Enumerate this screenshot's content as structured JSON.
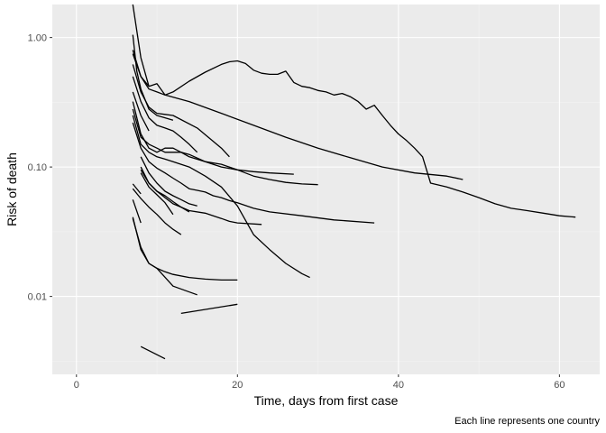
{
  "chart_data": {
    "type": "line",
    "title": "",
    "xlabel": "Time, days from first case",
    "ylabel": "Risk of death",
    "caption": "Each line represents one country",
    "y_scale": "log10",
    "xlim": [
      -3,
      65
    ],
    "ylim": [
      0.0025,
      1.8
    ],
    "x_ticks": [
      0,
      20,
      40,
      60
    ],
    "x_tick_labels": [
      "0",
      "20",
      "40",
      "60"
    ],
    "y_ticks": [
      0.01,
      0.1,
      1
    ],
    "y_tick_labels": [
      "0.01",
      "0.10",
      "1.00"
    ],
    "grid": true,
    "legend": "none",
    "colors": {
      "panel": "#ebebeb",
      "grid_major": "#ffffff",
      "grid_minor": "#f4f4f4",
      "line": "#000000"
    },
    "series": [
      {
        "x": [
          7,
          8,
          9,
          10,
          11,
          12,
          14,
          16,
          18,
          19,
          20,
          21,
          22,
          23,
          24,
          25,
          26,
          27,
          28,
          29,
          30,
          31,
          32,
          33,
          34,
          35,
          36,
          37,
          38,
          39,
          40,
          41,
          42,
          43,
          44,
          46,
          48,
          50,
          52,
          54,
          56,
          58,
          60,
          62
        ],
        "y": [
          0.75,
          0.5,
          0.42,
          0.44,
          0.36,
          0.38,
          0.46,
          0.54,
          0.62,
          0.65,
          0.66,
          0.63,
          0.56,
          0.53,
          0.52,
          0.52,
          0.55,
          0.45,
          0.42,
          0.41,
          0.39,
          0.38,
          0.36,
          0.37,
          0.35,
          0.32,
          0.28,
          0.3,
          0.25,
          0.21,
          0.18,
          0.16,
          0.14,
          0.12,
          0.075,
          0.07,
          0.064,
          0.058,
          0.052,
          0.048,
          0.046,
          0.044,
          0.042,
          0.041
        ]
      },
      {
        "x": [
          7,
          8,
          9,
          10,
          11,
          14,
          18,
          22,
          26,
          30,
          34,
          38,
          42,
          46,
          48
        ],
        "y": [
          0.8,
          0.5,
          0.4,
          0.38,
          0.36,
          0.32,
          0.26,
          0.21,
          0.17,
          0.14,
          0.118,
          0.1,
          0.09,
          0.085,
          0.08
        ]
      },
      {
        "x": [
          7,
          8,
          9
        ],
        "y": [
          1.8,
          0.7,
          0.42
        ]
      },
      {
        "x": [
          7,
          7.5,
          8,
          9,
          10,
          11,
          12
        ],
        "y": [
          1.05,
          0.55,
          0.4,
          0.28,
          0.25,
          0.24,
          0.23
        ]
      },
      {
        "x": [
          7,
          8,
          9,
          10,
          11,
          12,
          15,
          18,
          19
        ],
        "y": [
          0.62,
          0.38,
          0.29,
          0.26,
          0.255,
          0.25,
          0.2,
          0.14,
          0.12
        ]
      },
      {
        "x": [
          7,
          8,
          9,
          10,
          11,
          12,
          13,
          14,
          15
        ],
        "y": [
          0.5,
          0.32,
          0.24,
          0.21,
          0.2,
          0.19,
          0.17,
          0.15,
          0.13
        ]
      },
      {
        "x": [
          7,
          8,
          9
        ],
        "y": [
          0.38,
          0.25,
          0.19
        ]
      },
      {
        "x": [
          7,
          8,
          9,
          10,
          11,
          12,
          13,
          14,
          16,
          18,
          20,
          22,
          24,
          26,
          28,
          30
        ],
        "y": [
          0.32,
          0.18,
          0.14,
          0.13,
          0.14,
          0.14,
          0.13,
          0.12,
          0.11,
          0.105,
          0.095,
          0.085,
          0.08,
          0.076,
          0.074,
          0.073
        ]
      },
      {
        "x": [
          7,
          8,
          9,
          10,
          11,
          12,
          13,
          14,
          16,
          18,
          20,
          22,
          24,
          27
        ],
        "y": [
          0.28,
          0.17,
          0.15,
          0.14,
          0.13,
          0.13,
          0.13,
          0.125,
          0.11,
          0.1,
          0.095,
          0.092,
          0.09,
          0.088
        ]
      },
      {
        "x": [
          7,
          8,
          9,
          10,
          11,
          12,
          14,
          16,
          18,
          20,
          22,
          24,
          26,
          28,
          29
        ],
        "y": [
          0.25,
          0.15,
          0.13,
          0.12,
          0.115,
          0.11,
          0.1,
          0.085,
          0.07,
          0.05,
          0.03,
          0.023,
          0.018,
          0.015,
          0.014
        ]
      },
      {
        "x": [
          7,
          8,
          9,
          10,
          11,
          12,
          13,
          14,
          15,
          16,
          17,
          18,
          19,
          20,
          22,
          24,
          28,
          32,
          37
        ],
        "y": [
          0.22,
          0.14,
          0.11,
          0.098,
          0.09,
          0.082,
          0.075,
          0.068,
          0.066,
          0.064,
          0.06,
          0.058,
          0.055,
          0.053,
          0.048,
          0.045,
          0.042,
          0.039,
          0.037
        ]
      },
      {
        "x": [
          8,
          9,
          10,
          11,
          12,
          13,
          14,
          16,
          17,
          18,
          19,
          20,
          23
        ],
        "y": [
          0.1,
          0.075,
          0.065,
          0.058,
          0.052,
          0.049,
          0.046,
          0.044,
          0.042,
          0.04,
          0.038,
          0.037,
          0.036
        ]
      },
      {
        "x": [
          8,
          9,
          10,
          11,
          12,
          13,
          14,
          15
        ],
        "y": [
          0.12,
          0.09,
          0.075,
          0.065,
          0.06,
          0.056,
          0.052,
          0.05
        ]
      },
      {
        "x": [
          8,
          9,
          10,
          11,
          12,
          13,
          14
        ],
        "y": [
          0.095,
          0.075,
          0.065,
          0.06,
          0.054,
          0.049,
          0.045
        ]
      },
      {
        "x": [
          8,
          9,
          10,
          11,
          12
        ],
        "y": [
          0.09,
          0.07,
          0.061,
          0.053,
          0.043
        ]
      },
      {
        "x": [
          7,
          8
        ],
        "y": [
          0.074,
          0.062
        ]
      },
      {
        "x": [
          7,
          8,
          9,
          10,
          11,
          12,
          13
        ],
        "y": [
          0.068,
          0.057,
          0.049,
          0.043,
          0.037,
          0.033,
          0.03
        ]
      },
      {
        "x": [
          7,
          8
        ],
        "y": [
          0.056,
          0.037
        ]
      },
      {
        "x": [
          7,
          8,
          9,
          10,
          11,
          12,
          14,
          16,
          18,
          20
        ],
        "y": [
          0.041,
          0.023,
          0.018,
          0.0165,
          0.0155,
          0.0148,
          0.014,
          0.0136,
          0.0134,
          0.0134
        ]
      },
      {
        "x": [
          7,
          8,
          9,
          10,
          12,
          15
        ],
        "y": [
          0.04,
          0.024,
          0.018,
          0.0165,
          0.012,
          0.0103
        ]
      },
      {
        "x": [
          13,
          20
        ],
        "y": [
          0.0074,
          0.0087
        ]
      },
      {
        "x": [
          8,
          11
        ],
        "y": [
          0.0041,
          0.0033
        ]
      }
    ]
  }
}
